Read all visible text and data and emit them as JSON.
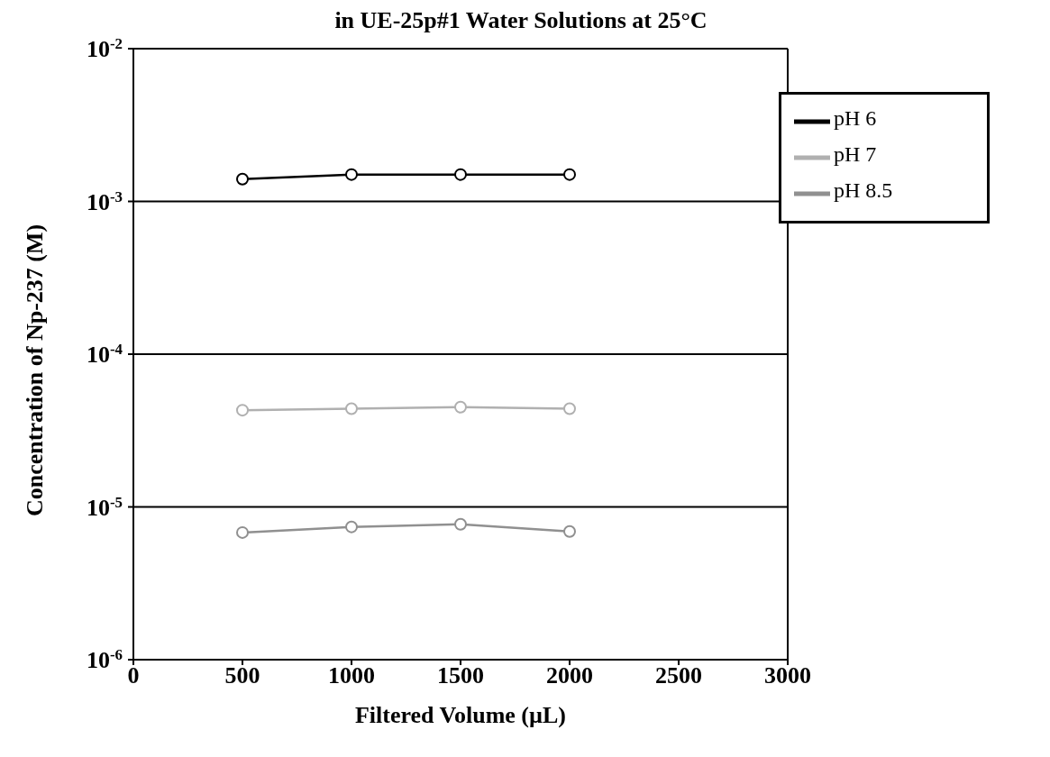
{
  "chart_data": {
    "type": "line",
    "title": "in UE-25p#1 Water Solutions at 25°C",
    "xlabel": "Filtered Volume (µL)",
    "ylabel": "Concentration of Np-237 (M)",
    "x": [
      500,
      1000,
      1500,
      2000
    ],
    "series": [
      {
        "name": "pH 6",
        "color": "#000000",
        "values": [
          0.0014,
          0.0015,
          0.0015,
          0.0015
        ]
      },
      {
        "name": "pH 7",
        "color": "#b0b0b0",
        "values": [
          4.3e-05,
          4.4e-05,
          4.5e-05,
          4.4e-05
        ]
      },
      {
        "name": "pH 8.5",
        "color": "#909090",
        "values": [
          6.8e-06,
          7.4e-06,
          7.7e-06,
          6.9e-06
        ]
      }
    ],
    "xlim": [
      0,
      3000
    ],
    "xticks": [
      0,
      500,
      1000,
      1500,
      2000,
      2500,
      3000
    ],
    "ylim": [
      1e-06,
      0.01
    ],
    "yticks": [
      {
        "value": 1e-06,
        "label": "10$^{-6}$"
      },
      {
        "value": 1e-05,
        "label": "10$^{-5}$"
      },
      {
        "value": 0.0001,
        "label": "10$^{-4}$"
      },
      {
        "value": 0.001,
        "label": "10$^{-3}$"
      },
      {
        "value": 0.01,
        "label": "10$^{-2}$"
      }
    ],
    "log": "y",
    "grid": "y",
    "legend": "top right",
    "marker": "circle",
    "line_style": "solid"
  }
}
